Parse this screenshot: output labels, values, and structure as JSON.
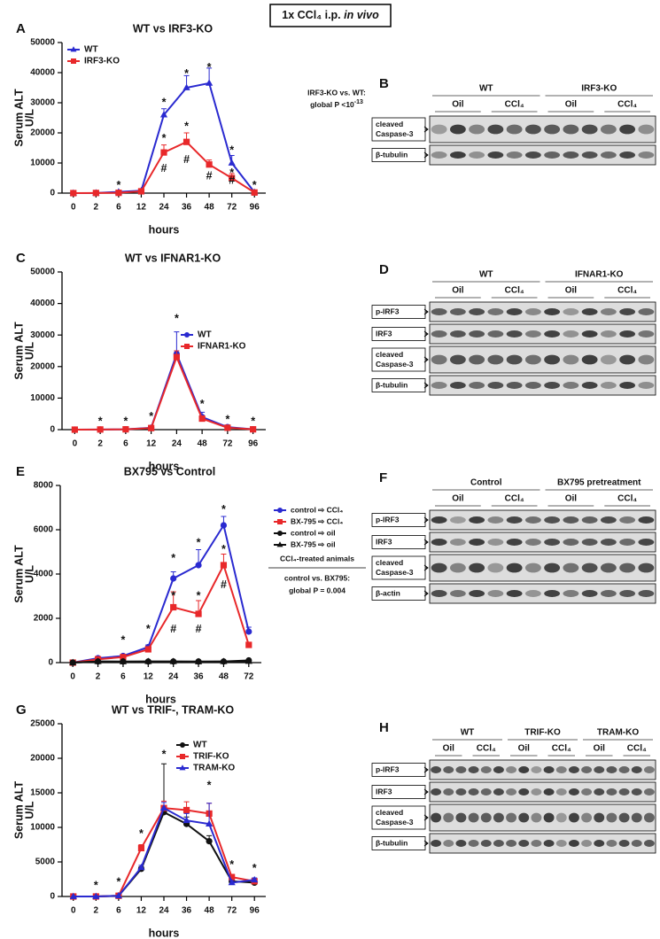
{
  "header": [
    "1x CCl₄ i.p. ",
    "in vivo"
  ],
  "chart_data": [
    {
      "type": "line",
      "letter": "A",
      "title": "WT vs IRF3-KO",
      "y_label": [
        "Serum ALT",
        "U/L"
      ],
      "x_label": "hours",
      "categories": [
        "0",
        "2",
        "6",
        "12",
        "24",
        "36",
        "48",
        "72",
        "96"
      ],
      "ylim": [
        0,
        50000
      ],
      "yticks": [
        0,
        10000,
        20000,
        30000,
        40000,
        50000
      ],
      "legend": "upper left",
      "series": [
        {
          "name": "WT",
          "color": "#2a2ad0",
          "marker": "triangle",
          "values": [
            0,
            50,
            400,
            800,
            26000,
            35000,
            36500,
            10000,
            300
          ],
          "errors": [
            null,
            null,
            200,
            300,
            2000,
            4000,
            5000,
            2500,
            200
          ]
        },
        {
          "name": "IRF3-KO",
          "color": "#e8282a",
          "marker": "square",
          "values": [
            0,
            50,
            100,
            600,
            13500,
            17000,
            9500,
            5000,
            200
          ],
          "errors": [
            null,
            null,
            null,
            200,
            2500,
            3000,
            1500,
            1500,
            100
          ]
        }
      ],
      "annotations": [
        {
          "text": "*",
          "x": "6",
          "y": 2500
        },
        {
          "text": "*",
          "x": "24",
          "y": 30000
        },
        {
          "text": "*",
          "x": "24",
          "y": 18000
        },
        {
          "text": "#",
          "x": "24",
          "y": 8000
        },
        {
          "text": "*",
          "x": "36",
          "y": 39500
        },
        {
          "text": "*",
          "x": "36",
          "y": 22000
        },
        {
          "text": "#",
          "x": "36",
          "y": 11000
        },
        {
          "text": "*",
          "x": "48",
          "y": 41500
        },
        {
          "text": "#",
          "x": "48",
          "y": 5500
        },
        {
          "text": "*",
          "x": "72",
          "y": 14000
        },
        {
          "text": "*",
          "x": "72",
          "y": 6500
        },
        {
          "text": "#",
          "x": "72",
          "y": 4000
        },
        {
          "text": "*",
          "x": "96",
          "y": 2500
        }
      ],
      "note": [
        "IRF3-KO vs. WT:",
        "global P <10"
      ],
      "note_sup": "-13"
    },
    {
      "type": "line",
      "letter": "C",
      "title": "WT vs IFNAR1-KO",
      "y_label": [
        "Serum ALT",
        "U/L"
      ],
      "x_label": "hours",
      "categories": [
        "0",
        "2",
        "6",
        "12",
        "24",
        "48",
        "72",
        "96"
      ],
      "ylim": [
        0,
        50000
      ],
      "yticks": [
        0,
        10000,
        20000,
        30000,
        40000,
        50000
      ],
      "legend": "center right",
      "series": [
        {
          "name": "WT",
          "color": "#2a2ad0",
          "marker": "circle",
          "values": [
            0,
            50,
            100,
            600,
            24000,
            4000,
            800,
            100
          ],
          "errors": [
            null,
            null,
            null,
            null,
            7000,
            1500,
            400,
            null
          ]
        },
        {
          "name": "IFNAR1-KO",
          "color": "#e8282a",
          "marker": "square",
          "values": [
            0,
            50,
            100,
            500,
            23000,
            3500,
            600,
            100
          ],
          "errors": [
            null,
            null,
            null,
            null,
            2000,
            800,
            300,
            null
          ]
        }
      ],
      "annotations": [
        {
          "text": "*",
          "x": "2",
          "y": 2500
        },
        {
          "text": "*",
          "x": "6",
          "y": 2500
        },
        {
          "text": "*",
          "x": "12",
          "y": 4000
        },
        {
          "text": "*",
          "x": "24",
          "y": 35000
        },
        {
          "text": "*",
          "x": "48",
          "y": 8000
        },
        {
          "text": "*",
          "x": "72",
          "y": 3000
        },
        {
          "text": "*",
          "x": "96",
          "y": 2500
        }
      ]
    },
    {
      "type": "line",
      "letter": "E",
      "title": "BX795 vs Control",
      "y_label": [
        "Serum ALT",
        "U/L"
      ],
      "x_label": "hours",
      "categories": [
        "0",
        "2",
        "6",
        "12",
        "24",
        "36",
        "48",
        "72"
      ],
      "ylim": [
        0,
        8000
      ],
      "yticks": [
        0,
        2000,
        4000,
        6000,
        8000
      ],
      "legend": "outside right",
      "series": [
        {
          "name": "control ⇨ CCl₄",
          "color": "#2a2ad0",
          "marker": "circle",
          "values": [
            0,
            200,
            300,
            700,
            3800,
            4400,
            6200,
            1400
          ],
          "errors": [
            null,
            50,
            50,
            100,
            300,
            700,
            400,
            200
          ]
        },
        {
          "name": "BX-795 ⇨ CCl₄",
          "color": "#e8282a",
          "marker": "square",
          "values": [
            0,
            150,
            250,
            600,
            2500,
            2200,
            4400,
            800
          ],
          "errors": [
            null,
            50,
            50,
            100,
            700,
            600,
            500,
            100
          ]
        },
        {
          "name": "control ⇨ oil",
          "color": "#111111",
          "marker": "circle",
          "values": [
            0,
            50,
            50,
            50,
            50,
            50,
            50,
            100
          ],
          "errors": [
            null,
            null,
            null,
            null,
            null,
            null,
            null,
            null
          ]
        },
        {
          "name": "BX-795 ⇨ oil",
          "color": "#111111",
          "marker": "triangle",
          "values": [
            0,
            50,
            40,
            50,
            50,
            40,
            50,
            60
          ],
          "errors": [
            null,
            null,
            null,
            null,
            null,
            null,
            null,
            null
          ]
        }
      ],
      "annotations": [
        {
          "text": "*",
          "x": "6",
          "y": 1000
        },
        {
          "text": "*",
          "x": "12",
          "y": 1500
        },
        {
          "text": "*",
          "x": "24",
          "y": 4700
        },
        {
          "text": "*",
          "x": "24",
          "y": 3000
        },
        {
          "text": "#",
          "x": "24",
          "y": 1500
        },
        {
          "text": "*",
          "x": "36",
          "y": 5400
        },
        {
          "text": "*",
          "x": "36",
          "y": 3000
        },
        {
          "text": "#",
          "x": "36",
          "y": 1500
        },
        {
          "text": "*",
          "x": "48",
          "y": 6900
        },
        {
          "text": "*",
          "x": "48",
          "y": 5100
        },
        {
          "text": "#",
          "x": "48",
          "y": 3500
        }
      ],
      "note_title": "CCl₄-treated animals",
      "note": [
        "control vs. BX795:",
        "global P = 0.004"
      ]
    },
    {
      "type": "line",
      "letter": "G",
      "title": "WT vs TRIF-, TRAM-KO",
      "y_label": [
        "Serum ALT",
        "U/L"
      ],
      "x_label": "hours",
      "categories": [
        "0",
        "2",
        "6",
        "12",
        "24",
        "36",
        "48",
        "72",
        "96"
      ],
      "ylim": [
        0,
        25000
      ],
      "yticks": [
        0,
        5000,
        10000,
        15000,
        20000,
        25000
      ],
      "legend": "upper right",
      "series": [
        {
          "name": "WT",
          "color": "#111111",
          "marker": "circle",
          "values": [
            0,
            0,
            100,
            4000,
            12200,
            10500,
            8000,
            2200,
            2000
          ],
          "errors": [
            null,
            null,
            null,
            300,
            7000,
            1000,
            800,
            300,
            300
          ]
        },
        {
          "name": "TRIF-KO",
          "color": "#e8282a",
          "marker": "square",
          "values": [
            0,
            0,
            100,
            7000,
            12800,
            12500,
            12000,
            2800,
            2200
          ],
          "errors": [
            null,
            null,
            null,
            500,
            1000,
            1200,
            1500,
            400,
            300
          ]
        },
        {
          "name": "TRAM-KO",
          "color": "#2a2ad0",
          "marker": "triangle",
          "values": [
            0,
            0,
            100,
            4200,
            12800,
            11000,
            10500,
            2000,
            2400
          ],
          "errors": [
            null,
            null,
            null,
            300,
            800,
            1000,
            3000,
            300,
            300
          ]
        }
      ],
      "annotations": [
        {
          "text": "*",
          "x": "2",
          "y": 1500
        },
        {
          "text": "*",
          "x": "6",
          "y": 2000
        },
        {
          "text": "*",
          "x": "12",
          "y": 9000
        },
        {
          "text": "*",
          "x": "24",
          "y": 20500
        },
        {
          "text": "*",
          "x": "48",
          "y": 16000
        },
        {
          "text": "*",
          "x": "72",
          "y": 4500
        },
        {
          "text": "*",
          "x": "96",
          "y": 4000
        }
      ]
    }
  ],
  "blots": [
    {
      "letter": "B",
      "groups": [
        {
          "label": "WT",
          "subs": [
            "Oil",
            "CCl₄"
          ]
        },
        {
          "label": "IRF3-KO",
          "subs": [
            "Oil",
            "CCl₄"
          ]
        }
      ],
      "rows": [
        [
          "cleaved",
          "Caspase-3"
        ],
        [
          "β-tubulin"
        ]
      ]
    },
    {
      "letter": "D",
      "groups": [
        {
          "label": "WT",
          "subs": [
            "Oil",
            "CCl₄"
          ]
        },
        {
          "label": "IFNAR1-KO",
          "subs": [
            "Oil",
            "CCl₄"
          ]
        }
      ],
      "rows": [
        [
          "p-IRF3"
        ],
        [
          "IRF3"
        ],
        [
          "cleaved",
          "Caspase-3"
        ],
        [
          "β-tubulin"
        ]
      ]
    },
    {
      "letter": "F",
      "groups": [
        {
          "label": "Control",
          "subs": [
            "Oil",
            "CCl₄"
          ]
        },
        {
          "label": "BX795 pretreatment",
          "subs": [
            "Oil",
            "CCl₄"
          ]
        }
      ],
      "rows": [
        [
          "p-IRF3"
        ],
        [
          "IRF3"
        ],
        [
          "cleaved",
          "Caspase-3"
        ],
        [
          "β-actin"
        ]
      ]
    },
    {
      "letter": "H",
      "groups": [
        {
          "label": "WT",
          "subs": [
            "Oil",
            "CCl₄"
          ]
        },
        {
          "label": "TRIF-KO",
          "subs": [
            "Oil",
            "CCl₄"
          ]
        },
        {
          "label": "TRAM-KO",
          "subs": [
            "Oil",
            "CCl₄"
          ]
        }
      ],
      "rows": [
        [
          "p-IRF3"
        ],
        [
          "IRF3"
        ],
        [
          "cleaved",
          "Caspase-3"
        ],
        [
          "β-tubulin"
        ]
      ]
    }
  ]
}
